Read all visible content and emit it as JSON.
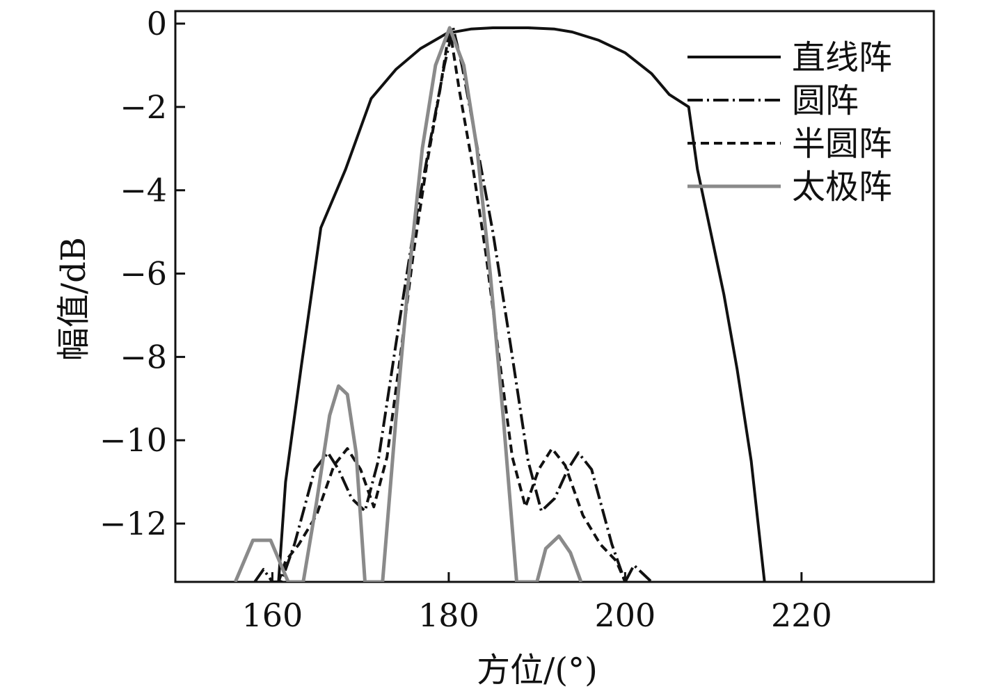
{
  "chart_data": {
    "type": "line",
    "xlabel": "方位/(°)",
    "ylabel": "幅值/dB",
    "xlim": [
      149,
      235
    ],
    "ylim": [
      -13.4,
      0.3
    ],
    "xticks": [
      160,
      180,
      200,
      220
    ],
    "yticks": [
      0,
      -2,
      -4,
      -6,
      -8,
      -10,
      -12
    ],
    "xtick_labels": [
      "160",
      "180",
      "200",
      "220"
    ],
    "ytick_labels": [
      "0",
      "−2",
      "−4",
      "−6",
      "−8",
      "−10",
      "−12"
    ],
    "legend_position": "top-right",
    "grid": false,
    "series": [
      {
        "name": "直线阵",
        "style": "solid",
        "color": "#111111",
        "points": [
          [
            160.7,
            -13.4
          ],
          [
            161.5,
            -11.0
          ],
          [
            163.3,
            -8.2
          ],
          [
            165.5,
            -4.9
          ],
          [
            168.3,
            -3.5
          ],
          [
            171.2,
            -1.8
          ],
          [
            174.0,
            -1.1
          ],
          [
            176.8,
            -0.6
          ],
          [
            179.8,
            -0.23
          ],
          [
            182.5,
            -0.13
          ],
          [
            185.0,
            -0.1
          ],
          [
            189.0,
            -0.1
          ],
          [
            192.0,
            -0.13
          ],
          [
            194.0,
            -0.2
          ],
          [
            197.0,
            -0.4
          ],
          [
            200.0,
            -0.7
          ],
          [
            203.0,
            -1.2
          ],
          [
            205.0,
            -1.7
          ],
          [
            207.2,
            -2.0
          ],
          [
            208.2,
            -3.5
          ],
          [
            209.7,
            -5.0
          ],
          [
            211.2,
            -6.5
          ],
          [
            212.7,
            -8.3
          ],
          [
            214.3,
            -10.5
          ],
          [
            215.8,
            -13.4
          ]
        ]
      },
      {
        "name": "圆阵",
        "style": "dashdot",
        "color": "#111111",
        "points": [
          [
            158.0,
            -13.4
          ],
          [
            159.0,
            -13.1
          ],
          [
            160.0,
            -13.4
          ],
          [
            161.0,
            -13.4
          ],
          [
            162.5,
            -12.5
          ],
          [
            164.8,
            -10.7
          ],
          [
            166.3,
            -10.3
          ],
          [
            167.5,
            -10.7
          ],
          [
            169.0,
            -11.4
          ],
          [
            170.5,
            -11.7
          ],
          [
            172.0,
            -10.5
          ],
          [
            174.0,
            -7.7
          ],
          [
            176.0,
            -5.0
          ],
          [
            178.0,
            -2.7
          ],
          [
            179.5,
            -1.0
          ],
          [
            180.5,
            -0.1
          ],
          [
            181.5,
            -1.0
          ],
          [
            183.0,
            -2.7
          ],
          [
            185.0,
            -5.0
          ],
          [
            187.0,
            -7.7
          ],
          [
            189.0,
            -10.5
          ],
          [
            190.5,
            -11.7
          ],
          [
            192.0,
            -11.4
          ],
          [
            193.5,
            -10.7
          ],
          [
            194.7,
            -10.3
          ],
          [
            196.2,
            -10.7
          ],
          [
            198.5,
            -12.5
          ],
          [
            200.0,
            -13.4
          ],
          [
            201.0,
            -13.0
          ],
          [
            202.0,
            -13.2
          ],
          [
            203.0,
            -13.4
          ]
        ]
      },
      {
        "name": "半圆阵",
        "style": "dashed",
        "color": "#111111",
        "points": [
          [
            160.7,
            -13.4
          ],
          [
            161.5,
            -12.9
          ],
          [
            163.0,
            -12.5
          ],
          [
            165.0,
            -11.8
          ],
          [
            167.0,
            -10.6
          ],
          [
            168.5,
            -10.2
          ],
          [
            170.0,
            -10.7
          ],
          [
            171.5,
            -11.6
          ],
          [
            173.0,
            -10.4
          ],
          [
            174.5,
            -8.0
          ],
          [
            176.0,
            -5.5
          ],
          [
            177.5,
            -3.4
          ],
          [
            179.0,
            -1.6
          ],
          [
            180.1,
            -0.1
          ],
          [
            181.2,
            -1.6
          ],
          [
            182.7,
            -3.4
          ],
          [
            184.2,
            -5.5
          ],
          [
            185.7,
            -8.0
          ],
          [
            187.2,
            -10.4
          ],
          [
            188.7,
            -11.6
          ],
          [
            190.2,
            -10.7
          ],
          [
            191.7,
            -10.2
          ],
          [
            193.2,
            -10.6
          ],
          [
            195.2,
            -11.8
          ],
          [
            197.2,
            -12.5
          ],
          [
            199.0,
            -12.9
          ],
          [
            200.0,
            -13.4
          ]
        ]
      },
      {
        "name": "太极阵",
        "style": "solid-gray",
        "color": "#8a8a8a",
        "points": [
          [
            155.8,
            -13.4
          ],
          [
            157.8,
            -12.4
          ],
          [
            159.8,
            -12.4
          ],
          [
            161.8,
            -13.4
          ],
          [
            163.5,
            -13.4
          ],
          [
            165.0,
            -11.5
          ],
          [
            166.5,
            -9.4
          ],
          [
            167.5,
            -8.7
          ],
          [
            168.5,
            -8.9
          ],
          [
            169.5,
            -10.3
          ],
          [
            170.5,
            -13.4
          ],
          [
            172.5,
            -13.4
          ],
          [
            174.0,
            -9.5
          ],
          [
            175.5,
            -6.0
          ],
          [
            177.0,
            -3.0
          ],
          [
            178.5,
            -1.0
          ],
          [
            180.1,
            -0.1
          ],
          [
            181.7,
            -1.0
          ],
          [
            183.2,
            -3.0
          ],
          [
            184.7,
            -6.0
          ],
          [
            186.2,
            -9.5
          ],
          [
            187.7,
            -13.4
          ],
          [
            190.0,
            -13.4
          ],
          [
            191.0,
            -12.6
          ],
          [
            192.5,
            -12.3
          ],
          [
            193.8,
            -12.7
          ],
          [
            195.0,
            -13.4
          ]
        ]
      }
    ]
  }
}
